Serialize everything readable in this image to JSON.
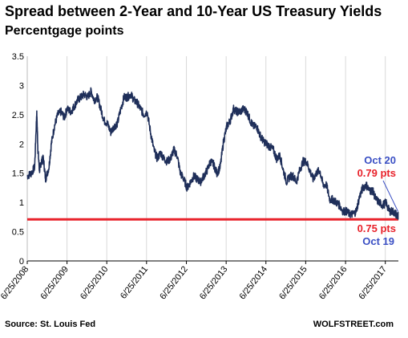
{
  "chart_data": {
    "type": "line",
    "title": "Spread between 2-Year and 10-Year US Treasury Yields",
    "subtitle": "Percentgage points",
    "source": "Source: St. Louis Fed",
    "brand": "WOLFSTREET.com",
    "x_range": [
      "2008-06-25",
      "2017-10-23"
    ],
    "ylim": [
      0,
      3.5
    ],
    "y_ticks": [
      0,
      0.5,
      1,
      1.5,
      2,
      2.5,
      3,
      3.5
    ],
    "y_tick_labels": [
      "0",
      "0.5",
      "1",
      "1.5",
      "2",
      "2.5",
      "3",
      "3.5"
    ],
    "x_ticks": [
      "2008-06-25",
      "2009-06-25",
      "2010-06-25",
      "2011-06-25",
      "2012-06-25",
      "2013-06-25",
      "2014-06-25",
      "2015-06-25",
      "2016-06-25",
      "2017-06-25"
    ],
    "x_tick_labels": [
      "6/25/2008",
      "6/25/2009",
      "6/25/2010",
      "6/25/2011",
      "6/25/2012",
      "6/25/2013",
      "6/25/2014",
      "6/25/2015",
      "6/25/2016",
      "6/25/2017"
    ],
    "grid": "vertical",
    "line_color": "#1f2f5a",
    "reference_line": {
      "y": 0.71,
      "color": "#e8212a"
    },
    "annotations": [
      {
        "date_label": "Oct 20",
        "value_label": "0.79 pts",
        "date_color": "#3a4fc4",
        "value_color": "#e8212a"
      },
      {
        "date_label": "Oct 19",
        "value_label": "0.75 pts",
        "date_color": "#3a4fc4",
        "value_color": "#e8212a"
      }
    ],
    "series": [
      {
        "x": [
          "2008-06-25",
          "2008-08-01",
          "2008-09-01",
          "2008-09-20",
          "2008-10-01",
          "2008-10-15",
          "2008-11-01",
          "2008-11-20",
          "2008-12-10",
          "2009-01-10",
          "2009-02-01",
          "2009-03-01",
          "2009-04-01",
          "2009-05-01",
          "2009-06-01",
          "2009-06-25",
          "2009-08-01",
          "2009-09-01",
          "2009-10-01",
          "2009-11-01",
          "2009-12-01",
          "2010-01-01",
          "2010-02-01",
          "2010-03-01",
          "2010-04-01",
          "2010-05-01",
          "2010-06-01",
          "2010-07-01",
          "2010-08-01",
          "2010-09-01",
          "2010-10-01",
          "2010-11-01",
          "2010-12-01",
          "2011-01-01",
          "2011-02-01",
          "2011-03-01",
          "2011-04-01",
          "2011-05-01",
          "2011-06-01",
          "2011-07-01",
          "2011-08-01",
          "2011-09-01",
          "2011-10-01",
          "2011-11-01",
          "2011-12-01",
          "2012-01-01",
          "2012-02-01",
          "2012-03-01",
          "2012-04-01",
          "2012-05-01",
          "2012-06-01",
          "2012-07-01",
          "2012-08-01",
          "2012-09-01",
          "2012-10-01",
          "2012-11-01",
          "2012-12-01",
          "2013-01-01",
          "2013-02-01",
          "2013-03-01",
          "2013-04-01",
          "2013-05-01",
          "2013-06-01",
          "2013-07-01",
          "2013-08-01",
          "2013-09-01",
          "2013-10-01",
          "2013-11-01",
          "2013-12-01",
          "2014-01-01",
          "2014-02-01",
          "2014-03-01",
          "2014-04-01",
          "2014-05-01",
          "2014-06-01",
          "2014-07-01",
          "2014-08-01",
          "2014-09-01",
          "2014-10-01",
          "2014-11-01",
          "2014-12-01",
          "2015-01-01",
          "2015-02-01",
          "2015-03-01",
          "2015-04-01",
          "2015-05-01",
          "2015-06-01",
          "2015-07-01",
          "2015-08-01",
          "2015-09-01",
          "2015-10-01",
          "2015-11-01",
          "2015-12-01",
          "2016-01-01",
          "2016-02-01",
          "2016-03-01",
          "2016-04-01",
          "2016-05-01",
          "2016-06-01",
          "2016-07-01",
          "2016-08-01",
          "2016-09-01",
          "2016-10-01",
          "2016-11-01",
          "2016-12-01",
          "2017-01-01",
          "2017-02-01",
          "2017-03-01",
          "2017-04-01",
          "2017-05-01",
          "2017-06-01",
          "2017-07-01",
          "2017-08-01",
          "2017-09-01",
          "2017-10-01",
          "2017-10-19",
          "2017-10-20"
        ],
        "y": [
          1.45,
          1.5,
          1.6,
          2.55,
          1.9,
          1.55,
          1.7,
          1.75,
          1.4,
          1.6,
          2.0,
          2.3,
          2.5,
          2.55,
          2.45,
          2.6,
          2.55,
          2.65,
          2.75,
          2.8,
          2.85,
          2.8,
          2.9,
          2.75,
          2.8,
          2.6,
          2.4,
          2.35,
          2.2,
          2.3,
          2.35,
          2.6,
          2.8,
          2.8,
          2.85,
          2.75,
          2.7,
          2.6,
          2.5,
          2.55,
          2.2,
          1.9,
          1.75,
          1.85,
          1.75,
          1.7,
          1.75,
          1.9,
          1.8,
          1.5,
          1.4,
          1.25,
          1.35,
          1.45,
          1.4,
          1.35,
          1.45,
          1.55,
          1.7,
          1.65,
          1.5,
          1.6,
          2.05,
          2.3,
          2.4,
          2.6,
          2.55,
          2.55,
          2.6,
          2.55,
          2.4,
          2.3,
          2.3,
          2.15,
          2.05,
          2.0,
          1.95,
          1.9,
          1.75,
          1.8,
          1.55,
          1.35,
          1.45,
          1.45,
          1.35,
          1.55,
          1.7,
          1.7,
          1.55,
          1.4,
          1.5,
          1.55,
          1.3,
          1.3,
          1.05,
          1.05,
          1.0,
          0.95,
          0.85,
          0.85,
          0.8,
          0.8,
          0.85,
          1.1,
          1.25,
          1.3,
          1.2,
          1.2,
          1.05,
          1.0,
          0.95,
          1.0,
          0.85,
          0.85,
          0.8,
          0.75,
          0.79
        ]
      }
    ]
  }
}
